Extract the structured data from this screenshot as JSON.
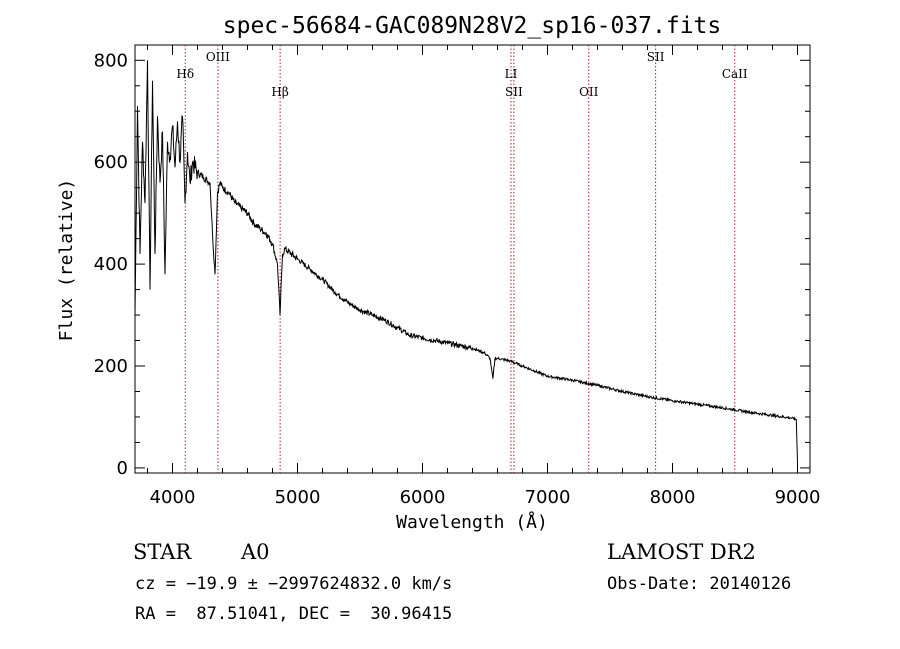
{
  "chart_data": {
    "type": "line",
    "title": "spec-56684-GAC089N28V2_sp16-037.fits",
    "xlabel": "Wavelength (Å)",
    "ylabel": "Flux (relative)",
    "xlim": [
      3700,
      9100
    ],
    "ylim": [
      -10,
      830
    ],
    "xticks": [
      4000,
      5000,
      6000,
      7000,
      8000,
      9000
    ],
    "xtick_labels": [
      "4000",
      "5000",
      "6000",
      "7000",
      "8000",
      "9000"
    ],
    "yticks": [
      0,
      200,
      400,
      600,
      800
    ],
    "ytick_labels": [
      "0",
      "200",
      "400",
      "600",
      "800"
    ],
    "grid": false,
    "series": [
      {
        "name": "flux",
        "x": [
          3700,
          3720,
          3740,
          3760,
          3780,
          3800,
          3820,
          3840,
          3860,
          3880,
          3900,
          3920,
          3940,
          3960,
          3980,
          4000,
          4020,
          4040,
          4060,
          4080,
          4100,
          4120,
          4140,
          4160,
          4200,
          4250,
          4300,
          4320,
          4340,
          4360,
          4380,
          4400,
          4450,
          4500,
          4550,
          4600,
          4650,
          4700,
          4750,
          4800,
          4840,
          4860,
          4880,
          4900,
          4950,
          5000,
          5100,
          5200,
          5300,
          5400,
          5500,
          5600,
          5700,
          5800,
          5900,
          6000,
          6100,
          6200,
          6300,
          6400,
          6500,
          6540,
          6563,
          6580,
          6600,
          6700,
          6800,
          6900,
          7000,
          7200,
          7400,
          7600,
          7800,
          8000,
          8200,
          8400,
          8600,
          8800,
          8950,
          8990,
          9000
        ],
        "y": [
          300,
          710,
          420,
          640,
          520,
          800,
          350,
          760,
          420,
          690,
          560,
          660,
          380,
          640,
          610,
          670,
          590,
          680,
          600,
          690,
          520,
          620,
          560,
          600,
          580,
          570,
          560,
          460,
          380,
          540,
          560,
          550,
          540,
          520,
          510,
          500,
          480,
          470,
          460,
          440,
          400,
          300,
          420,
          430,
          420,
          410,
          390,
          370,
          345,
          325,
          310,
          300,
          290,
          275,
          260,
          255,
          250,
          245,
          240,
          235,
          225,
          215,
          175,
          215,
          215,
          210,
          200,
          190,
          180,
          172,
          162,
          150,
          140,
          132,
          125,
          118,
          110,
          103,
          98,
          95,
          10
        ]
      }
    ],
    "lines": [
      {
        "name": "Hδ",
        "wavelength": 4102
      },
      {
        "name": "OIII",
        "wavelength": 4363
      },
      {
        "name": "Hβ",
        "wavelength": 4861
      },
      {
        "name": "LI",
        "wavelength": 6708
      },
      {
        "name": "SII",
        "wavelength": 6731
      },
      {
        "name": "OII",
        "wavelength": 7330
      },
      {
        "name": "SII",
        "wavelength": 7865
      },
      {
        "name": "CaII",
        "wavelength": 8498
      }
    ]
  },
  "info": {
    "object_class": "STAR",
    "subclass": "A0",
    "survey": "LAMOST DR2",
    "cz_line": "cz = −19.9 ± −2997624832.0 km/s",
    "obs_date": "Obs-Date: 20140126",
    "coords": "RA =  87.51041, DEC =  30.96415"
  },
  "colors": {
    "axis": "#000000",
    "spectrum": "#000000",
    "line_marker": "#b22222"
  }
}
